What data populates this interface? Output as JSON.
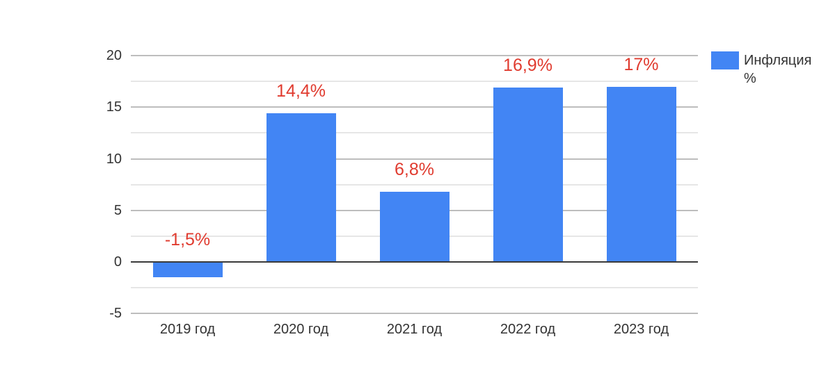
{
  "chart_data": {
    "type": "bar",
    "categories": [
      "2019 год",
      "2020 год",
      "2021 год",
      "2022 год",
      "2023 год"
    ],
    "series": [
      {
        "name": "Инфляция %",
        "values": [
          -1.5,
          14.4,
          6.8,
          16.9,
          17
        ]
      }
    ],
    "data_labels": [
      "-1,5%",
      "14,4%",
      "6,8%",
      "16,9%",
      "17%"
    ],
    "y_axis": {
      "min": -5,
      "max": 20,
      "major_ticks": [
        20,
        15,
        10,
        5,
        0,
        -5
      ],
      "minor_ticks": [
        17.5,
        12.5,
        7.5,
        2.5,
        -2.5
      ]
    },
    "legend": {
      "position": "right",
      "label": "Инфляция %"
    },
    "grid": true,
    "colors": {
      "bar": "#4285f4",
      "data_label": "#e03b2f",
      "axis_text": "#333333",
      "grid_major": "#bdbdbd",
      "grid_minor": "#e6e6e6",
      "baseline": "#3a3a3a",
      "background": "#ffffff"
    }
  }
}
